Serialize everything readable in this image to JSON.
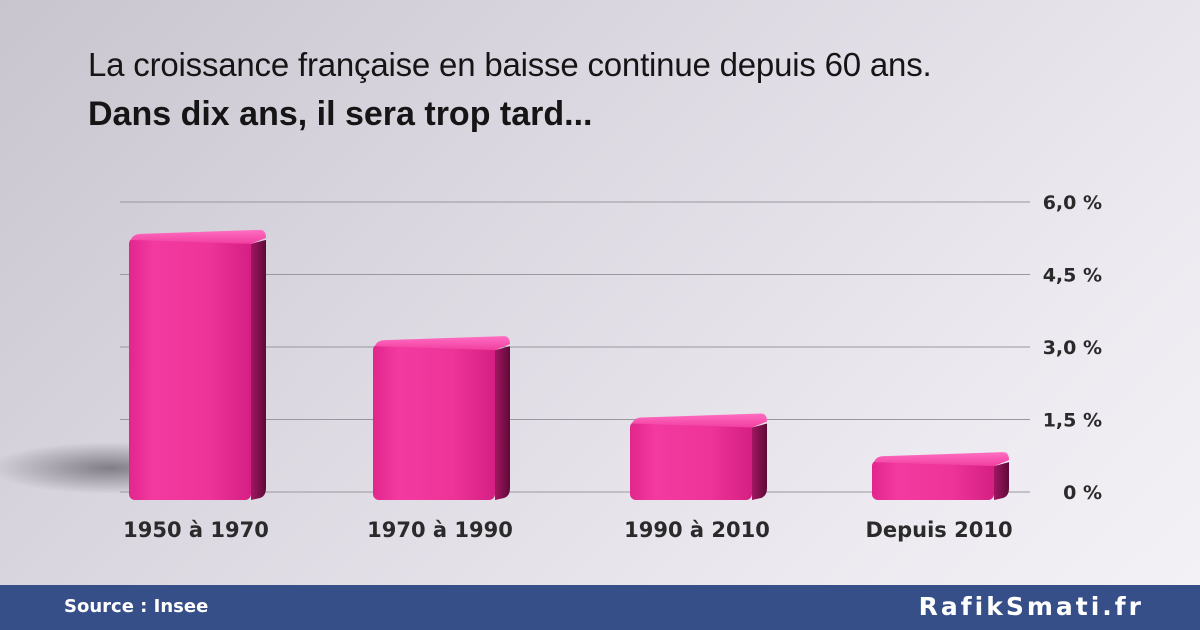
{
  "header": {
    "title": "La croissance française en baisse continue depuis 60 ans.",
    "subtitle": "Dans dix ans, il sera trop tard..."
  },
  "chart_data": {
    "type": "bar",
    "categories": [
      "1950 à 1970",
      "1970 à 1990",
      "1990 à 2010",
      "Depuis 2010"
    ],
    "values": [
      5.3,
      3.1,
      1.5,
      0.7
    ],
    "y_ticks": [
      0,
      1.5,
      3.0,
      4.5,
      6.0
    ],
    "y_tick_labels": [
      "0 %",
      "1,5 %",
      "3,0 %",
      "4,5 %",
      "6,0 %"
    ],
    "ylim": [
      0,
      6
    ],
    "grid": true,
    "axis_side": "right",
    "bar_color": "#f0359a"
  },
  "footer": {
    "source": "Source : Insee",
    "brand": "RafikSmati.fr"
  }
}
